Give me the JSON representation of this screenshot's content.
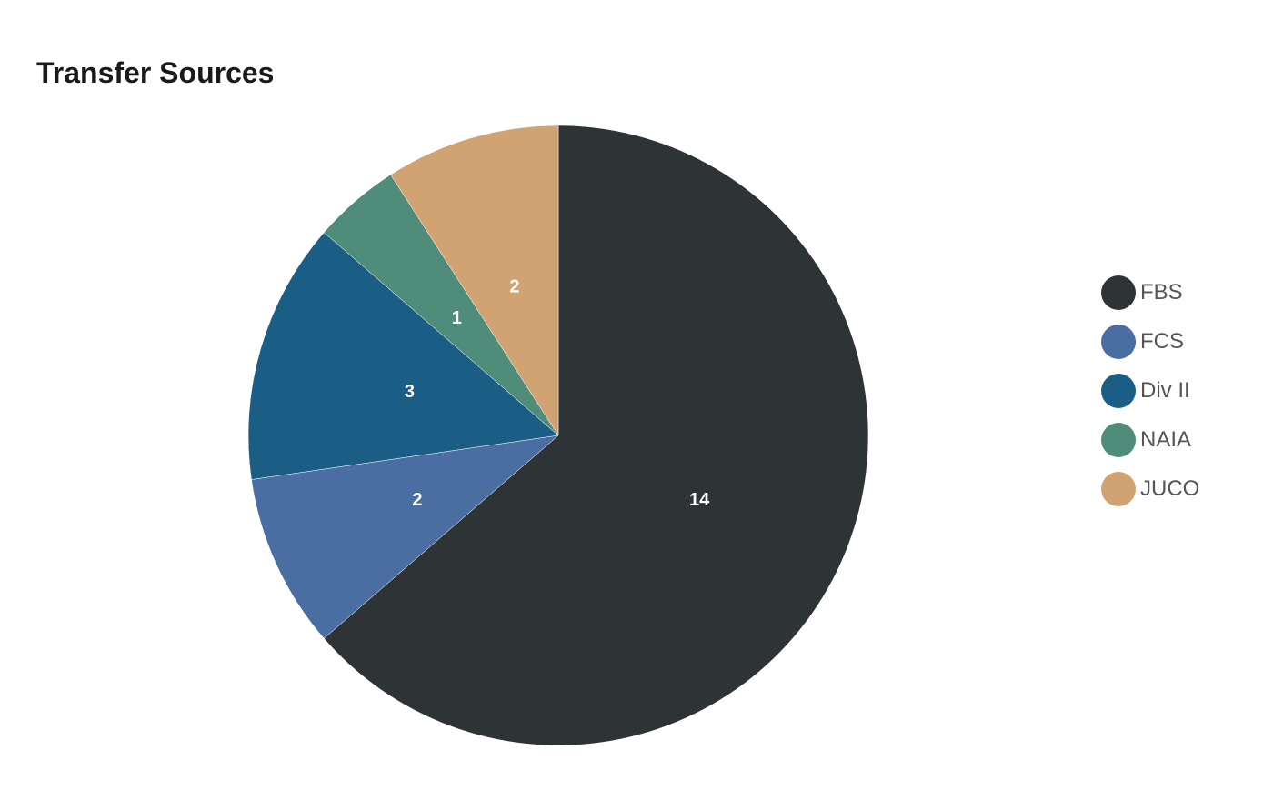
{
  "chart_data": {
    "type": "pie",
    "title": "Transfer Sources",
    "categories": [
      "FBS",
      "FCS",
      "Div II",
      "NAIA",
      "JUCO"
    ],
    "values": [
      14,
      2,
      3,
      1,
      2
    ],
    "colors": [
      "#2e3436",
      "#4a6ea1",
      "#1a5e86",
      "#4f8c7a",
      "#d1a373"
    ],
    "legend": "right",
    "data_labels": true
  }
}
